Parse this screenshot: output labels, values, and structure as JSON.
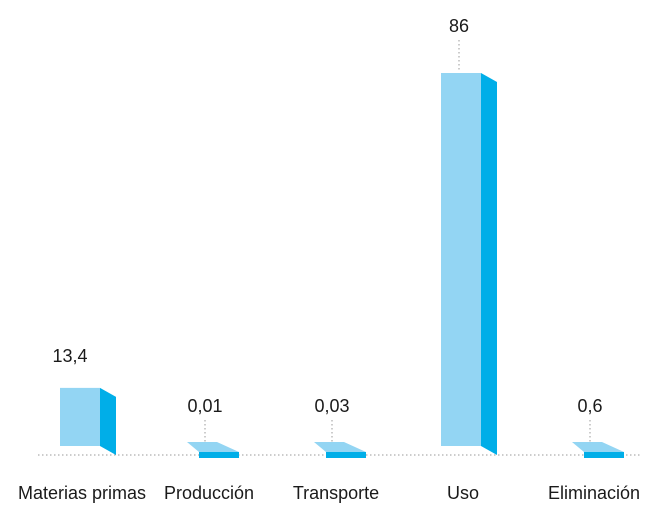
{
  "chart_data": {
    "type": "bar",
    "categories": [
      "Materias primas",
      "Producción",
      "Transporte",
      "Uso",
      "Eliminación"
    ],
    "values": [
      13.4,
      0.01,
      0.03,
      86,
      0.6
    ],
    "value_labels": [
      "13,4",
      "0,01",
      "0,03",
      "86",
      "0,6"
    ],
    "title": "",
    "xlabel": "",
    "ylabel": "",
    "ylim": [
      0,
      86
    ],
    "grid": false,
    "legend": "none",
    "colors": {
      "front": "#93d5f3",
      "side": "#00aee8",
      "top": "#0096d6"
    }
  }
}
